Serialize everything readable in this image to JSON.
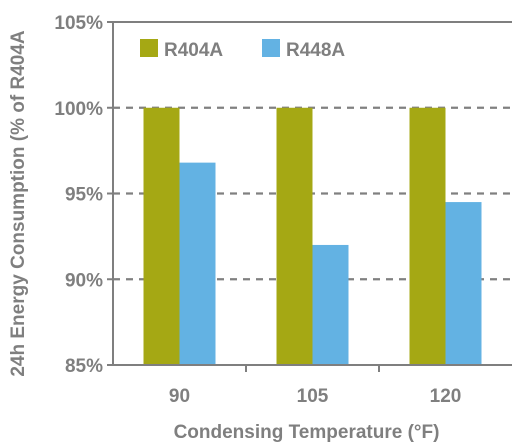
{
  "chart_data": {
    "type": "bar",
    "categories": [
      "90",
      "105",
      "120"
    ],
    "series": [
      {
        "name": "R404A",
        "values": [
          100,
          100,
          100
        ],
        "color": "#a5a814"
      },
      {
        "name": "R448A",
        "values": [
          96.8,
          92.0,
          94.5
        ],
        "color": "#63b2e3"
      }
    ],
    "xlabel": "Condensing Temperature (°F)",
    "ylabel": "24h Energy Consumption (% of R404A",
    "ylim": [
      85,
      105
    ],
    "yticks": [
      85,
      90,
      95,
      100,
      105
    ],
    "ytick_labels": [
      "85%",
      "90%",
      "95%",
      "100%",
      "105%"
    ],
    "grid": "dashed horizontal at 90, 95, 100",
    "legend": "top-left inside",
    "axis_color": "#7f7f7f",
    "grid_color": "#808080"
  }
}
